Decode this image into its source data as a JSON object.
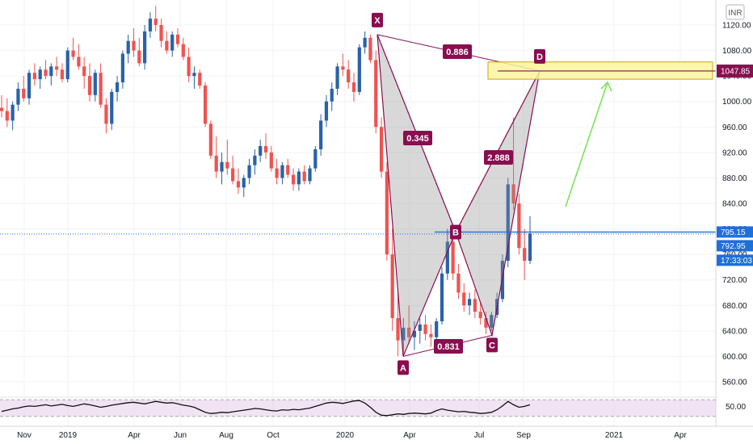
{
  "chart_data": {
    "type": "candlestick",
    "currency": "INR",
    "y_ticks": [
      "1120.00",
      "1080.00",
      "1040.00",
      "1000.00",
      "960.00",
      "920.00",
      "880.00",
      "840.00",
      "800.00",
      "760.00",
      "720.00",
      "680.00",
      "640.00",
      "600.00",
      "560.00"
    ],
    "ylim": [
      530,
      1155
    ],
    "x_ticks": [
      "Nov",
      "2019",
      "Apr",
      "Jun",
      "Aug",
      "Oct",
      "2020",
      "Apr",
      "Jul",
      "Sep",
      "2021",
      "Apr"
    ],
    "price_labels": {
      "target": "1047.85",
      "line": "795.15",
      "last": "792.95",
      "countdown": "17:33:03"
    },
    "pattern": {
      "points": {
        "X": {
          "label": "X",
          "value": 1105
        },
        "A": {
          "label": "A",
          "value": 600
        },
        "B": {
          "label": "B",
          "value": 795
        },
        "C": {
          "label": "C",
          "value": 633
        },
        "D": {
          "label": "D",
          "value": 1048
        }
      },
      "ratios": {
        "XD": "0.886",
        "XB": "0.345",
        "AC": "0.831",
        "BD": "2.888"
      }
    },
    "candles": [
      {
        "o": 990,
        "h": 1010,
        "l": 975,
        "c": 985
      },
      {
        "o": 985,
        "h": 1005,
        "l": 960,
        "c": 970
      },
      {
        "o": 970,
        "h": 1000,
        "l": 955,
        "c": 995
      },
      {
        "o": 995,
        "h": 1030,
        "l": 985,
        "c": 1020
      },
      {
        "o": 1020,
        "h": 1040,
        "l": 1000,
        "c": 1005
      },
      {
        "o": 1005,
        "h": 1050,
        "l": 995,
        "c": 1045
      },
      {
        "o": 1045,
        "h": 1060,
        "l": 1025,
        "c": 1035
      },
      {
        "o": 1035,
        "h": 1055,
        "l": 1020,
        "c": 1050
      },
      {
        "o": 1050,
        "h": 1065,
        "l": 1035,
        "c": 1040
      },
      {
        "o": 1040,
        "h": 1060,
        "l": 1025,
        "c": 1055
      },
      {
        "o": 1055,
        "h": 1070,
        "l": 1040,
        "c": 1050
      },
      {
        "o": 1050,
        "h": 1060,
        "l": 1030,
        "c": 1035
      },
      {
        "o": 1035,
        "h": 1085,
        "l": 1030,
        "c": 1080
      },
      {
        "o": 1080,
        "h": 1100,
        "l": 1065,
        "c": 1070
      },
      {
        "o": 1070,
        "h": 1090,
        "l": 1050,
        "c": 1055
      },
      {
        "o": 1055,
        "h": 1070,
        "l": 1020,
        "c": 1040
      },
      {
        "o": 1040,
        "h": 1060,
        "l": 1000,
        "c": 1010
      },
      {
        "o": 1010,
        "h": 1050,
        "l": 1000,
        "c": 1045
      },
      {
        "o": 1045,
        "h": 1060,
        "l": 990,
        "c": 995
      },
      {
        "o": 995,
        "h": 1005,
        "l": 950,
        "c": 965
      },
      {
        "o": 965,
        "h": 1020,
        "l": 955,
        "c": 1015
      },
      {
        "o": 1015,
        "h": 1040,
        "l": 1000,
        "c": 1030
      },
      {
        "o": 1030,
        "h": 1080,
        "l": 1020,
        "c": 1075
      },
      {
        "o": 1075,
        "h": 1105,
        "l": 1060,
        "c": 1095
      },
      {
        "o": 1095,
        "h": 1115,
        "l": 1070,
        "c": 1080
      },
      {
        "o": 1080,
        "h": 1100,
        "l": 1055,
        "c": 1060
      },
      {
        "o": 1060,
        "h": 1120,
        "l": 1050,
        "c": 1110
      },
      {
        "o": 1110,
        "h": 1140,
        "l": 1100,
        "c": 1130
      },
      {
        "o": 1130,
        "h": 1150,
        "l": 1110,
        "c": 1120
      },
      {
        "o": 1120,
        "h": 1130,
        "l": 1085,
        "c": 1095
      },
      {
        "o": 1095,
        "h": 1110,
        "l": 1075,
        "c": 1080
      },
      {
        "o": 1080,
        "h": 1110,
        "l": 1070,
        "c": 1105
      },
      {
        "o": 1105,
        "h": 1115,
        "l": 1085,
        "c": 1090
      },
      {
        "o": 1090,
        "h": 1100,
        "l": 1065,
        "c": 1070
      },
      {
        "o": 1070,
        "h": 1085,
        "l": 1030,
        "c": 1040
      },
      {
        "o": 1040,
        "h": 1055,
        "l": 1020,
        "c": 1045
      },
      {
        "o": 1045,
        "h": 1050,
        "l": 1020,
        "c": 1025
      },
      {
        "o": 1025,
        "h": 1030,
        "l": 960,
        "c": 965
      },
      {
        "o": 965,
        "h": 970,
        "l": 910,
        "c": 915
      },
      {
        "o": 915,
        "h": 945,
        "l": 880,
        "c": 890
      },
      {
        "o": 890,
        "h": 920,
        "l": 870,
        "c": 905
      },
      {
        "o": 905,
        "h": 940,
        "l": 885,
        "c": 895
      },
      {
        "o": 895,
        "h": 915,
        "l": 870,
        "c": 875
      },
      {
        "o": 875,
        "h": 895,
        "l": 855,
        "c": 865
      },
      {
        "o": 865,
        "h": 885,
        "l": 850,
        "c": 880
      },
      {
        "o": 880,
        "h": 910,
        "l": 870,
        "c": 900
      },
      {
        "o": 900,
        "h": 925,
        "l": 885,
        "c": 915
      },
      {
        "o": 915,
        "h": 940,
        "l": 905,
        "c": 930
      },
      {
        "o": 930,
        "h": 950,
        "l": 910,
        "c": 920
      },
      {
        "o": 920,
        "h": 930,
        "l": 890,
        "c": 895
      },
      {
        "o": 895,
        "h": 910,
        "l": 870,
        "c": 880
      },
      {
        "o": 880,
        "h": 905,
        "l": 870,
        "c": 900
      },
      {
        "o": 900,
        "h": 910,
        "l": 880,
        "c": 885
      },
      {
        "o": 885,
        "h": 895,
        "l": 860,
        "c": 870
      },
      {
        "o": 870,
        "h": 895,
        "l": 860,
        "c": 890
      },
      {
        "o": 890,
        "h": 900,
        "l": 870,
        "c": 875
      },
      {
        "o": 875,
        "h": 900,
        "l": 870,
        "c": 895
      },
      {
        "o": 895,
        "h": 930,
        "l": 890,
        "c": 925
      },
      {
        "o": 925,
        "h": 980,
        "l": 915,
        "c": 970
      },
      {
        "o": 970,
        "h": 1010,
        "l": 960,
        "c": 1000
      },
      {
        "o": 1000,
        "h": 1030,
        "l": 985,
        "c": 1020
      },
      {
        "o": 1020,
        "h": 1060,
        "l": 1010,
        "c": 1055
      },
      {
        "o": 1055,
        "h": 1075,
        "l": 1040,
        "c": 1050
      },
      {
        "o": 1050,
        "h": 1065,
        "l": 1020,
        "c": 1030
      },
      {
        "o": 1030,
        "h": 1045,
        "l": 1000,
        "c": 1015
      },
      {
        "o": 1015,
        "h": 1090,
        "l": 1010,
        "c": 1085
      },
      {
        "o": 1085,
        "h": 1110,
        "l": 1075,
        "c": 1100
      },
      {
        "o": 1100,
        "h": 1105,
        "l": 1060,
        "c": 1065
      },
      {
        "o": 1065,
        "h": 1080,
        "l": 950,
        "c": 960
      },
      {
        "o": 960,
        "h": 975,
        "l": 880,
        "c": 890
      },
      {
        "o": 890,
        "h": 905,
        "l": 750,
        "c": 760
      },
      {
        "o": 760,
        "h": 800,
        "l": 640,
        "c": 660
      },
      {
        "o": 660,
        "h": 700,
        "l": 600,
        "c": 625
      },
      {
        "o": 625,
        "h": 660,
        "l": 605,
        "c": 645
      },
      {
        "o": 645,
        "h": 680,
        "l": 620,
        "c": 630
      },
      {
        "o": 630,
        "h": 655,
        "l": 610,
        "c": 640
      },
      {
        "o": 640,
        "h": 660,
        "l": 620,
        "c": 650
      },
      {
        "o": 650,
        "h": 665,
        "l": 625,
        "c": 635
      },
      {
        "o": 635,
        "h": 650,
        "l": 615,
        "c": 630
      },
      {
        "o": 630,
        "h": 660,
        "l": 625,
        "c": 655
      },
      {
        "o": 655,
        "h": 740,
        "l": 650,
        "c": 730
      },
      {
        "o": 730,
        "h": 800,
        "l": 720,
        "c": 780
      },
      {
        "o": 780,
        "h": 790,
        "l": 720,
        "c": 730
      },
      {
        "o": 730,
        "h": 745,
        "l": 690,
        "c": 700
      },
      {
        "o": 700,
        "h": 715,
        "l": 670,
        "c": 680
      },
      {
        "o": 680,
        "h": 700,
        "l": 665,
        "c": 690
      },
      {
        "o": 690,
        "h": 705,
        "l": 660,
        "c": 670
      },
      {
        "o": 670,
        "h": 685,
        "l": 650,
        "c": 660
      },
      {
        "o": 660,
        "h": 670,
        "l": 635,
        "c": 645
      },
      {
        "o": 645,
        "h": 670,
        "l": 640,
        "c": 665
      },
      {
        "o": 665,
        "h": 700,
        "l": 660,
        "c": 690
      },
      {
        "o": 690,
        "h": 760,
        "l": 685,
        "c": 750
      },
      {
        "o": 750,
        "h": 880,
        "l": 740,
        "c": 870
      },
      {
        "o": 870,
        "h": 975,
        "l": 830,
        "c": 840
      },
      {
        "o": 840,
        "h": 855,
        "l": 760,
        "c": 770
      },
      {
        "o": 770,
        "h": 800,
        "l": 720,
        "c": 750
      },
      {
        "o": 750,
        "h": 820,
        "l": 745,
        "c": 793
      }
    ],
    "rsi": {
      "label": "50.00",
      "levels": [
        70,
        30
      ],
      "values": [
        42,
        45,
        48,
        50,
        53,
        55,
        54,
        56,
        58,
        55,
        57,
        59,
        56,
        54,
        57,
        60,
        58,
        55,
        52,
        54,
        57,
        59,
        61,
        63,
        64,
        62,
        60,
        63,
        66,
        64,
        62,
        63,
        60,
        57,
        55,
        52,
        46,
        40,
        37,
        38,
        40,
        39,
        41,
        43,
        45,
        47,
        49,
        48,
        46,
        44,
        43,
        46,
        45,
        47,
        46,
        48,
        50,
        54,
        58,
        62,
        64,
        63,
        61,
        64,
        67,
        68,
        62,
        52,
        40,
        33,
        32,
        34,
        36,
        35,
        37,
        38,
        37,
        36,
        38,
        44,
        48,
        45,
        43,
        41,
        42,
        40,
        39,
        37,
        38,
        40,
        46,
        55,
        66,
        58,
        52,
        54,
        58
      ]
    }
  }
}
